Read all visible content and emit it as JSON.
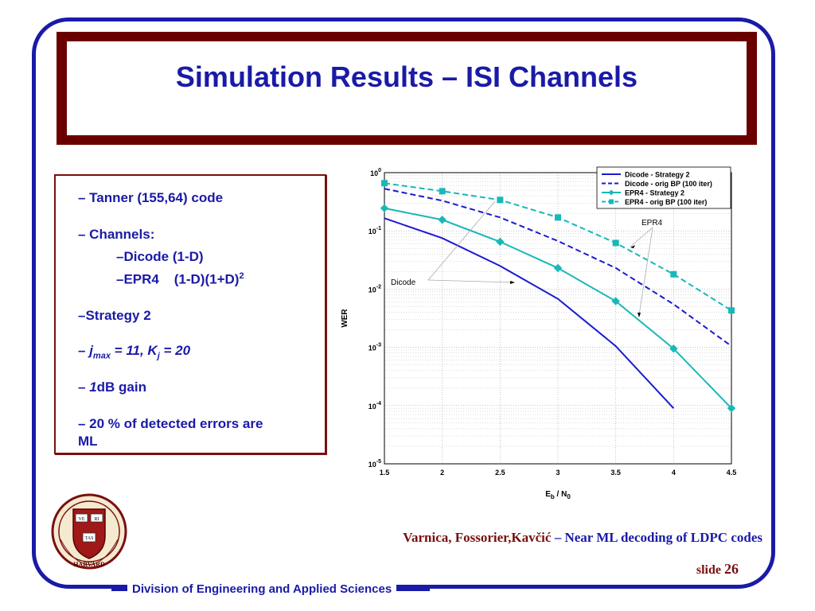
{
  "title": "Simulation Results – ISI Channels",
  "bullets": {
    "b1": "– Tanner (155,64) code",
    "b2": "– Channels:",
    "b3": "–Dicode (1-D)",
    "b4_a": "–EPR4    (1-D)(1+D)",
    "b4_sup": "2",
    "b5": "–Strategy 2",
    "b6_dash": "– ",
    "b6_j": "j",
    "b6_max": "max",
    "b6_mid": " = 11, K",
    "b6_jsub": "j",
    "b6_end": " = 20",
    "b7_dash": "– ",
    "b7_one": "1",
    "b7_rest": "dB gain",
    "b8_l1": "– 20 % of detected errors are",
    "b8_l2": "ML"
  },
  "citation": {
    "authors": "Varnica, Fossorier,Kavčić",
    "rest": " – Near ML decoding of LDPC codes"
  },
  "slide": {
    "label": "slide",
    "number": "26"
  },
  "footer": "Division of Engineering and Applied Sciences",
  "seal": {
    "words": [
      "VE",
      "RI",
      "TAS"
    ],
    "text": "HARVARD"
  },
  "colors": {
    "dicode": "#1a1ad0",
    "epr4": "#18b8b8",
    "frame": "#1a1aa8",
    "title_bg": "#6b0000"
  },
  "chart_data": {
    "type": "line",
    "xlabel_main": "E",
    "xlabel_sub1": "b",
    "xlabel_mid": " / N",
    "xlabel_sub2": "0",
    "ylabel": "WER",
    "xlim": [
      1.5,
      4.5
    ],
    "ylim_exp": [
      -5,
      0
    ],
    "yscale": "log",
    "grid": true,
    "legend_placement": "top-right",
    "xticks": [
      "1.5",
      "2",
      "2.5",
      "3",
      "3.5",
      "4",
      "4.5"
    ],
    "yticks": [
      0,
      -1,
      -2,
      -3,
      -4,
      -5
    ],
    "annotations": [
      "Dicode",
      "EPR4"
    ],
    "series": [
      {
        "name": "Dicode - Strategy 2",
        "style": "solid",
        "marker": "none",
        "color": "#1a1ad0",
        "x": [
          1.5,
          2,
          2.5,
          3,
          3.5,
          4
        ],
        "y": [
          0.165,
          0.075,
          0.025,
          0.0068,
          0.00105,
          9e-05
        ]
      },
      {
        "name": "Dicode - orig BP (100 iter)",
        "style": "dashed",
        "marker": "none",
        "color": "#1a1ad0",
        "x": [
          1.5,
          2,
          2.5,
          3,
          3.5,
          4,
          4.5
        ],
        "y": [
          0.53,
          0.33,
          0.17,
          0.067,
          0.023,
          0.0055,
          0.00105
        ]
      },
      {
        "name": "EPR4 - Strategy 2",
        "style": "solid",
        "marker": "diamond",
        "color": "#18b8b8",
        "x": [
          1.5,
          2,
          2.5,
          3,
          3.5,
          4,
          4.5
        ],
        "y": [
          0.245,
          0.155,
          0.065,
          0.023,
          0.0062,
          0.00095,
          9e-05
        ]
      },
      {
        "name": "EPR4 - orig BP (100 iter)",
        "style": "dashed",
        "marker": "square",
        "color": "#18b8b8",
        "x": [
          1.5,
          2,
          2.5,
          3,
          3.5,
          4,
          4.5
        ],
        "y": [
          0.66,
          0.48,
          0.34,
          0.17,
          0.062,
          0.018,
          0.0043
        ]
      }
    ]
  }
}
